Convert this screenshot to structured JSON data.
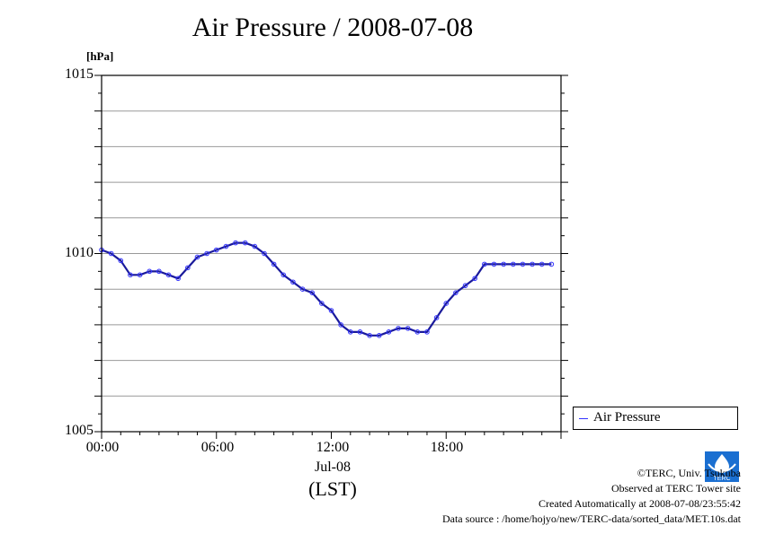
{
  "title": "Air Pressure / 2008-07-08",
  "unit_label": "[hPa]",
  "x_ticks": [
    "00:00",
    "06:00",
    "12:00",
    "18:00"
  ],
  "y_ticks": [
    "1015",
    "1010",
    "1005"
  ],
  "date_label": "Jul-08",
  "tz_label": "(LST)",
  "legend": {
    "label": "Air Pressure",
    "color": "#3333ff"
  },
  "credits": {
    "copyright": "©TERC, Univ. Tsukuba",
    "observed": "Observed at TERC Tower site",
    "created": "Created Automatically at 2008-07-08/23:55:42",
    "source": "Data source : /home/hojyo/new/TERC-data/sorted_data/MET.10s.dat"
  },
  "logo": {
    "icon": "terc-logo-icon",
    "text": "TERC",
    "color": "#1a6fd1"
  },
  "chart_data": {
    "type": "line",
    "title": "Air Pressure / 2008-07-08",
    "ylabel": "[hPa]",
    "xlabel": "(LST)",
    "xlim": [
      0,
      24
    ],
    "ylim": [
      1005,
      1015
    ],
    "grid": true,
    "legend_position": "bottom-right outside",
    "series": [
      {
        "name": "Air Pressure",
        "color": "#3333ff",
        "x": [
          0,
          0.5,
          1,
          1.5,
          2,
          2.5,
          3,
          3.5,
          4,
          4.5,
          5,
          5.5,
          6,
          6.5,
          7,
          7.5,
          8,
          8.5,
          9,
          9.5,
          10,
          10.5,
          11,
          11.5,
          12,
          12.5,
          13,
          13.5,
          14,
          14.5,
          15,
          15.5,
          16,
          16.5,
          17,
          17.5,
          18,
          18.5,
          19,
          19.5,
          20,
          20.5,
          21,
          21.5,
          22,
          22.5,
          23,
          23.5
        ],
        "y": [
          1010.1,
          1010.0,
          1009.8,
          1009.4,
          1009.4,
          1009.5,
          1009.5,
          1009.4,
          1009.3,
          1009.6,
          1009.9,
          1010.0,
          1010.1,
          1010.2,
          1010.3,
          1010.3,
          1010.2,
          1010.0,
          1009.7,
          1009.4,
          1009.2,
          1009.0,
          1008.9,
          1008.6,
          1008.4,
          1008.0,
          1007.8,
          1007.8,
          1007.7,
          1007.7,
          1007.8,
          1007.9,
          1007.9,
          1007.8,
          1007.8,
          1008.2,
          1008.6,
          1008.9,
          1009.1,
          1009.3,
          1009.7,
          1009.7,
          1009.7,
          1009.7,
          1009.7,
          1009.7,
          1009.7,
          1009.7
        ]
      }
    ]
  }
}
